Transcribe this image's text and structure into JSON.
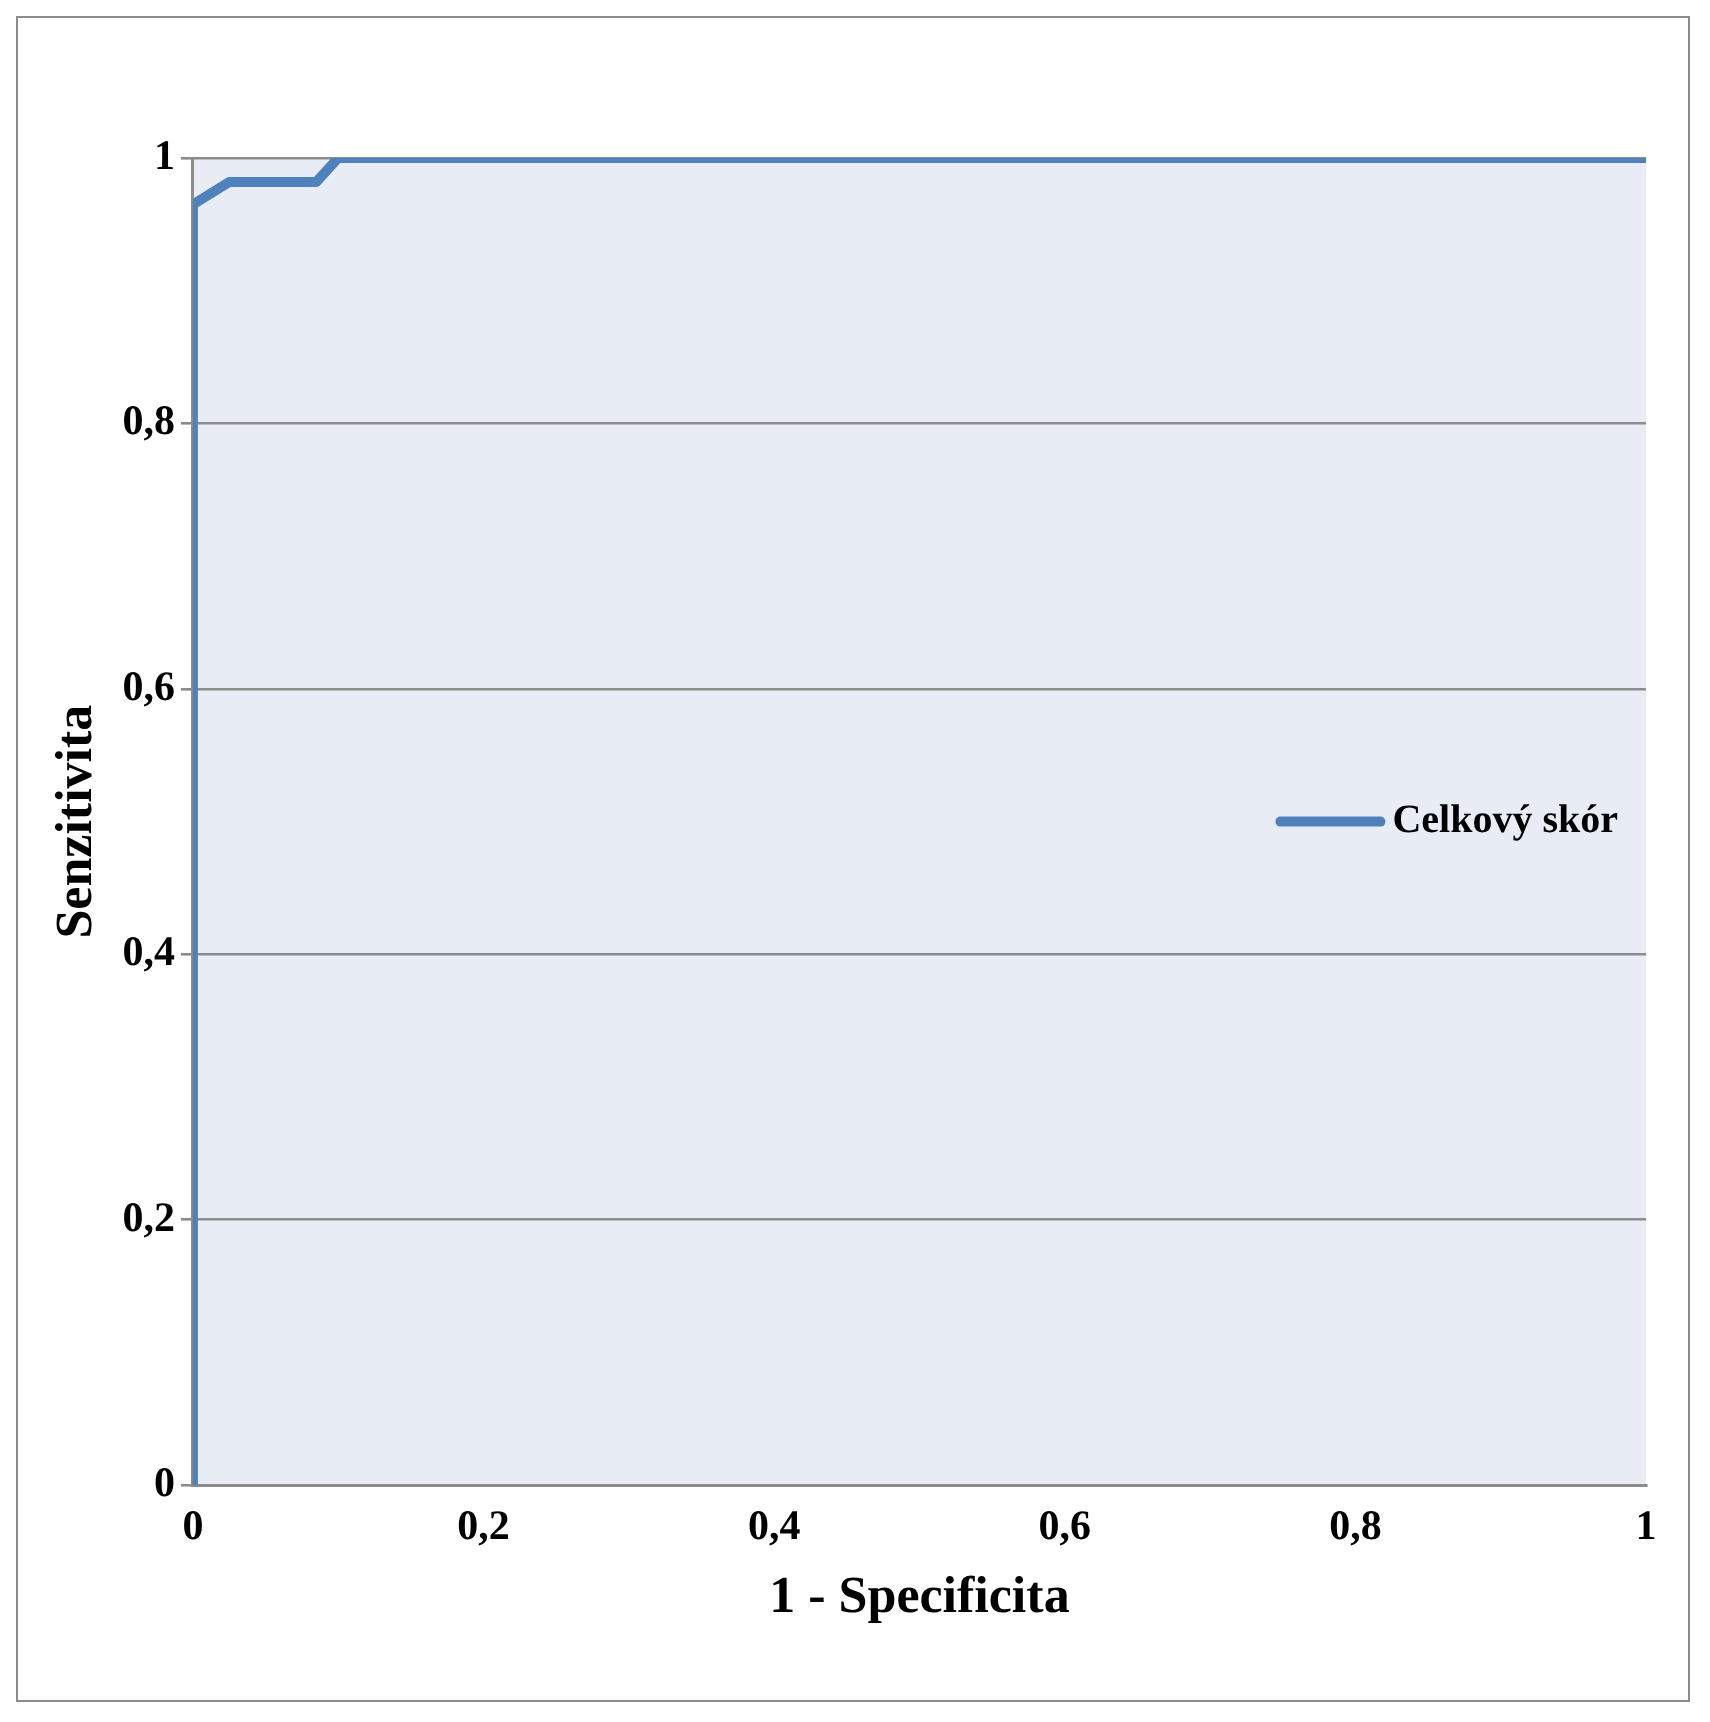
{
  "chart_data": {
    "type": "line",
    "xlabel": "1 - Specificita",
    "ylabel": "Senzitivita",
    "series": [
      {
        "name": "Celkový skór",
        "color": "#4f81bd",
        "x": [
          0,
          0,
          0.025,
          0.085,
          0.1,
          1
        ],
        "values": [
          0,
          0.965,
          0.982,
          0.982,
          1,
          1
        ]
      }
    ],
    "xlim": [
      0,
      1
    ],
    "ylim": [
      0,
      1
    ],
    "xticks": [
      0,
      {
        "value": 0.2,
        "label": "0,2"
      },
      {
        "value": 0.4,
        "label": "0,4"
      },
      {
        "value": 0.6,
        "label": "0,6"
      },
      {
        "value": 0.8,
        "label": "0,8"
      },
      1
    ],
    "yticks": [
      0,
      {
        "value": 0.2,
        "label": "0,2"
      },
      {
        "value": 0.4,
        "label": "0,4"
      },
      {
        "value": 0.6,
        "label": "0,6"
      },
      {
        "value": 0.8,
        "label": "0,8"
      },
      1
    ],
    "grid": "y",
    "legend": "right",
    "marker": "none",
    "line_style": "solid"
  }
}
